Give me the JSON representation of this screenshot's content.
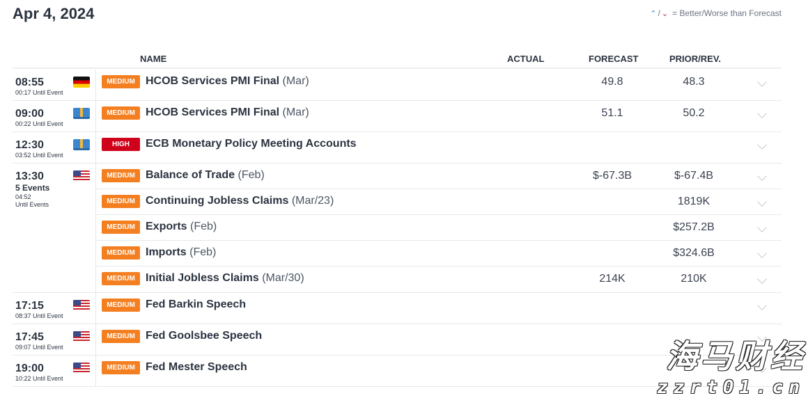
{
  "title": "Apr 4, 2024",
  "legend": {
    "separator": "/",
    "text": "= Better/Worse than Forecast",
    "better_icon": "better-arrow-up",
    "worse_icon": "worse-arrow-down"
  },
  "columns": {
    "name": "NAME",
    "actual": "ACTUAL",
    "forecast": "FORECAST",
    "prior": "PRIOR/REV."
  },
  "colors": {
    "medium": "#f47f20",
    "high": "#d0021b"
  },
  "groups": [
    {
      "time": "08:55",
      "until": "00:17 Until Event",
      "flag": "germany",
      "events": [
        {
          "impact": "MEDIUM",
          "name": "HCOB Services PMI Final",
          "period": "(Mar)",
          "actual": "",
          "forecast": "49.8",
          "prior": "48.3"
        }
      ]
    },
    {
      "time": "09:00",
      "until": "00:22 Until Event",
      "flag": "euro-area",
      "events": [
        {
          "impact": "MEDIUM",
          "name": "HCOB Services PMI Final",
          "period": "(Mar)",
          "actual": "",
          "forecast": "51.1",
          "prior": "50.2"
        }
      ]
    },
    {
      "time": "12:30",
      "until": "03:52 Until Event",
      "flag": "euro-area",
      "events": [
        {
          "impact": "HIGH",
          "name": "ECB Monetary Policy Meeting Accounts",
          "period": "",
          "actual": "",
          "forecast": "",
          "prior": ""
        }
      ]
    },
    {
      "time": "13:30",
      "count": "5 Events",
      "until_time": "04:52",
      "until": "Until Events",
      "flag": "united-states",
      "events": [
        {
          "impact": "MEDIUM",
          "name": "Balance of Trade",
          "period": "(Feb)",
          "actual": "",
          "forecast": "$-67.3B",
          "prior": "$-67.4B"
        },
        {
          "impact": "MEDIUM",
          "name": "Continuing Jobless Claims",
          "period": "(Mar/23)",
          "actual": "",
          "forecast": "",
          "prior": "1819K"
        },
        {
          "impact": "MEDIUM",
          "name": "Exports",
          "period": "(Feb)",
          "actual": "",
          "forecast": "",
          "prior": "$257.2B"
        },
        {
          "impact": "MEDIUM",
          "name": "Imports",
          "period": "(Feb)",
          "actual": "",
          "forecast": "",
          "prior": "$324.6B"
        },
        {
          "impact": "MEDIUM",
          "name": "Initial Jobless Claims",
          "period": "(Mar/30)",
          "actual": "",
          "forecast": "214K",
          "prior": "210K"
        }
      ]
    },
    {
      "time": "17:15",
      "until": "08:37 Until Event",
      "flag": "united-states",
      "events": [
        {
          "impact": "MEDIUM",
          "name": "Fed Barkin Speech",
          "period": "",
          "actual": "",
          "forecast": "",
          "prior": ""
        }
      ]
    },
    {
      "time": "17:45",
      "until": "09:07 Until Event",
      "flag": "united-states",
      "events": [
        {
          "impact": "MEDIUM",
          "name": "Fed Goolsbee Speech",
          "period": "",
          "actual": "",
          "forecast": "",
          "prior": ""
        }
      ]
    },
    {
      "time": "19:00",
      "until": "10:22 Until Event",
      "flag": "united-states",
      "events": [
        {
          "impact": "MEDIUM",
          "name": "Fed Mester Speech",
          "period": "",
          "actual": "",
          "forecast": "",
          "prior": ""
        }
      ]
    }
  ],
  "watermark": {
    "line1": "海马财经",
    "line2": "zzrt01.cn"
  }
}
